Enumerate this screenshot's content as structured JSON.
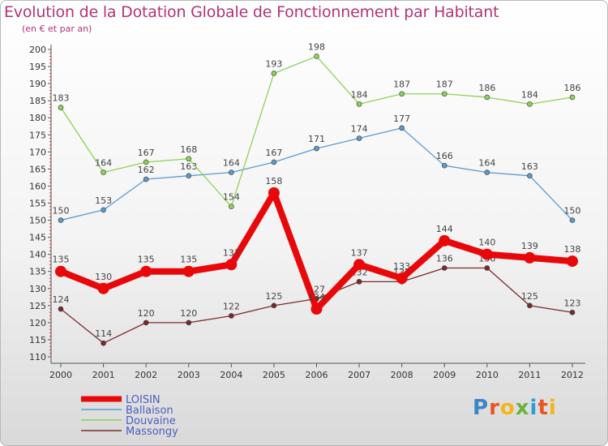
{
  "title": "Evolution de la Dotation Globale de Fonctionnement par Habitant",
  "subtitle": "(en € et par an)",
  "logo": {
    "text": "Proxiti",
    "colors": [
      "#3a86c8",
      "#e8561f",
      "#f3b51b",
      "#6cb33e",
      "#2a9fd8",
      "#e8561f",
      "#f3b51b"
    ]
  },
  "chart_data": {
    "type": "line",
    "title": "Evolution de la Dotation Globale de Fonctionnement par Habitant",
    "subtitle": "(en € et par an)",
    "xlabel": "",
    "ylabel": "",
    "x": [
      "2000",
      "2001",
      "2002",
      "2003",
      "2004",
      "2005",
      "2006",
      "2007",
      "2008",
      "2009",
      "2010",
      "2011",
      "2012"
    ],
    "ylim": [
      110,
      200
    ],
    "yticks": [
      110,
      115,
      120,
      125,
      130,
      135,
      140,
      145,
      150,
      155,
      160,
      165,
      170,
      175,
      180,
      185,
      190,
      195,
      200
    ],
    "grid": false,
    "legend_position": "bottom-left",
    "series": [
      {
        "name": "LOISIN",
        "color": "#e8080a",
        "highlight": true,
        "values": [
          135,
          130,
          135,
          135,
          137,
          158,
          124,
          137,
          133,
          144,
          140,
          139,
          138
        ],
        "labels": [
          "135",
          "130",
          "135",
          "135",
          "137",
          "158",
          "124",
          "137",
          "133",
          "144",
          "140",
          "139",
          "138"
        ]
      },
      {
        "name": "Ballaison",
        "color": "#5b9bd0",
        "highlight": false,
        "values": [
          150,
          153,
          162,
          163,
          164,
          167,
          171,
          174,
          177,
          166,
          164,
          163,
          150
        ],
        "labels": [
          "150",
          "153",
          "162",
          "163",
          "164",
          "167",
          "171",
          "174",
          "177",
          "166",
          "164",
          "163",
          "150"
        ]
      },
      {
        "name": "Douvaine",
        "color": "#8ed256",
        "highlight": false,
        "values": [
          183,
          164,
          167,
          168,
          154,
          193,
          198,
          184,
          187,
          187,
          186,
          184,
          186
        ],
        "labels": [
          "183",
          "164",
          "167",
          "168",
          "154",
          "193",
          "198",
          "184",
          "187",
          "187",
          "186",
          "184",
          "186"
        ]
      },
      {
        "name": "Massongy",
        "color": "#7a2a2a",
        "highlight": false,
        "values": [
          124,
          114,
          120,
          120,
          122,
          125,
          127,
          132,
          132,
          136,
          136,
          125,
          123
        ],
        "labels": [
          "124",
          "114",
          "120",
          "120",
          "122",
          "125",
          "127",
          "132",
          "132",
          "136",
          "136",
          "125",
          "123"
        ]
      }
    ]
  }
}
